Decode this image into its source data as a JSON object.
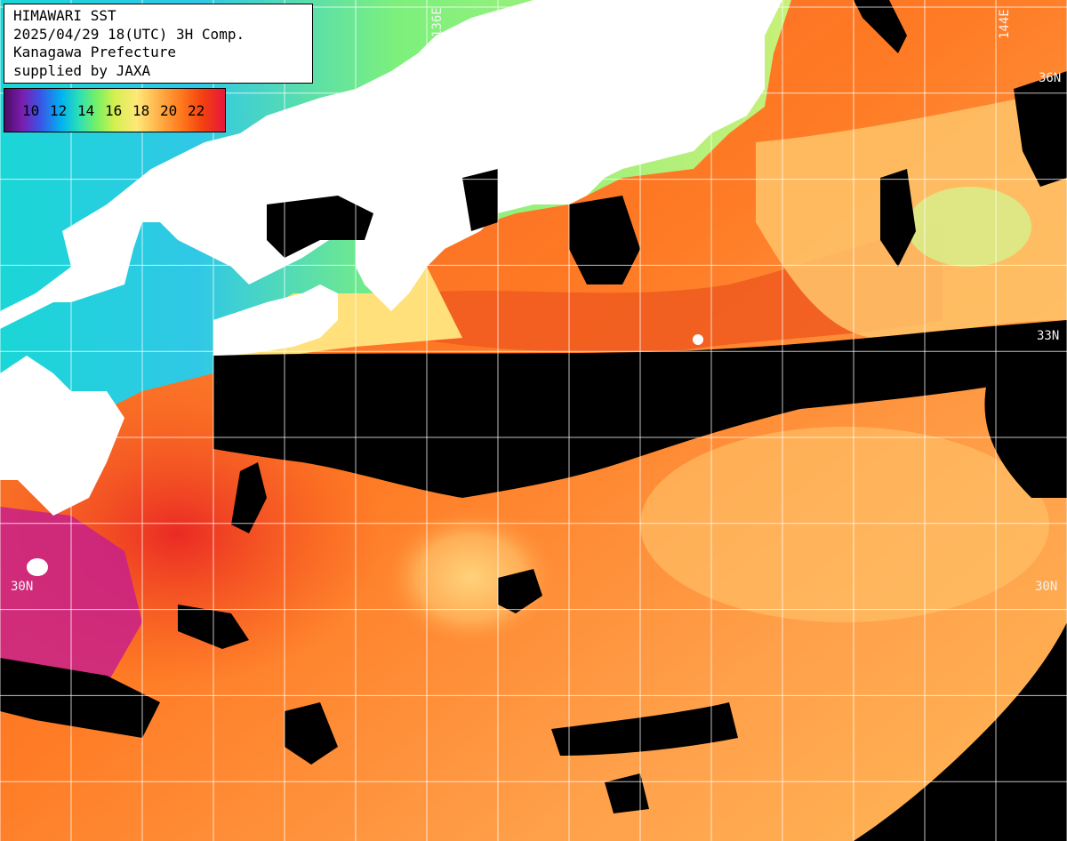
{
  "info": {
    "title": "HIMAWARI SST",
    "datetime": "2025/04/29 18(UTC) 3H Comp.",
    "region": "Kanagawa Prefecture",
    "credit": "supplied by JAXA"
  },
  "legend": {
    "ticks": [
      "10",
      "12",
      "14",
      "16",
      "18",
      "20",
      "22"
    ]
  },
  "grid_labels": {
    "lon_136": "136E",
    "lon_144": "144E",
    "lat_36": "36N",
    "lat_33": "33N",
    "lat_30_left": "30N",
    "lat_30_right": "30N"
  },
  "colors": {
    "land": "#ffffff",
    "no_data": "#000000",
    "warm": "#ff6a1c",
    "cool": "#66f0a0",
    "grid": "#ffffff"
  }
}
